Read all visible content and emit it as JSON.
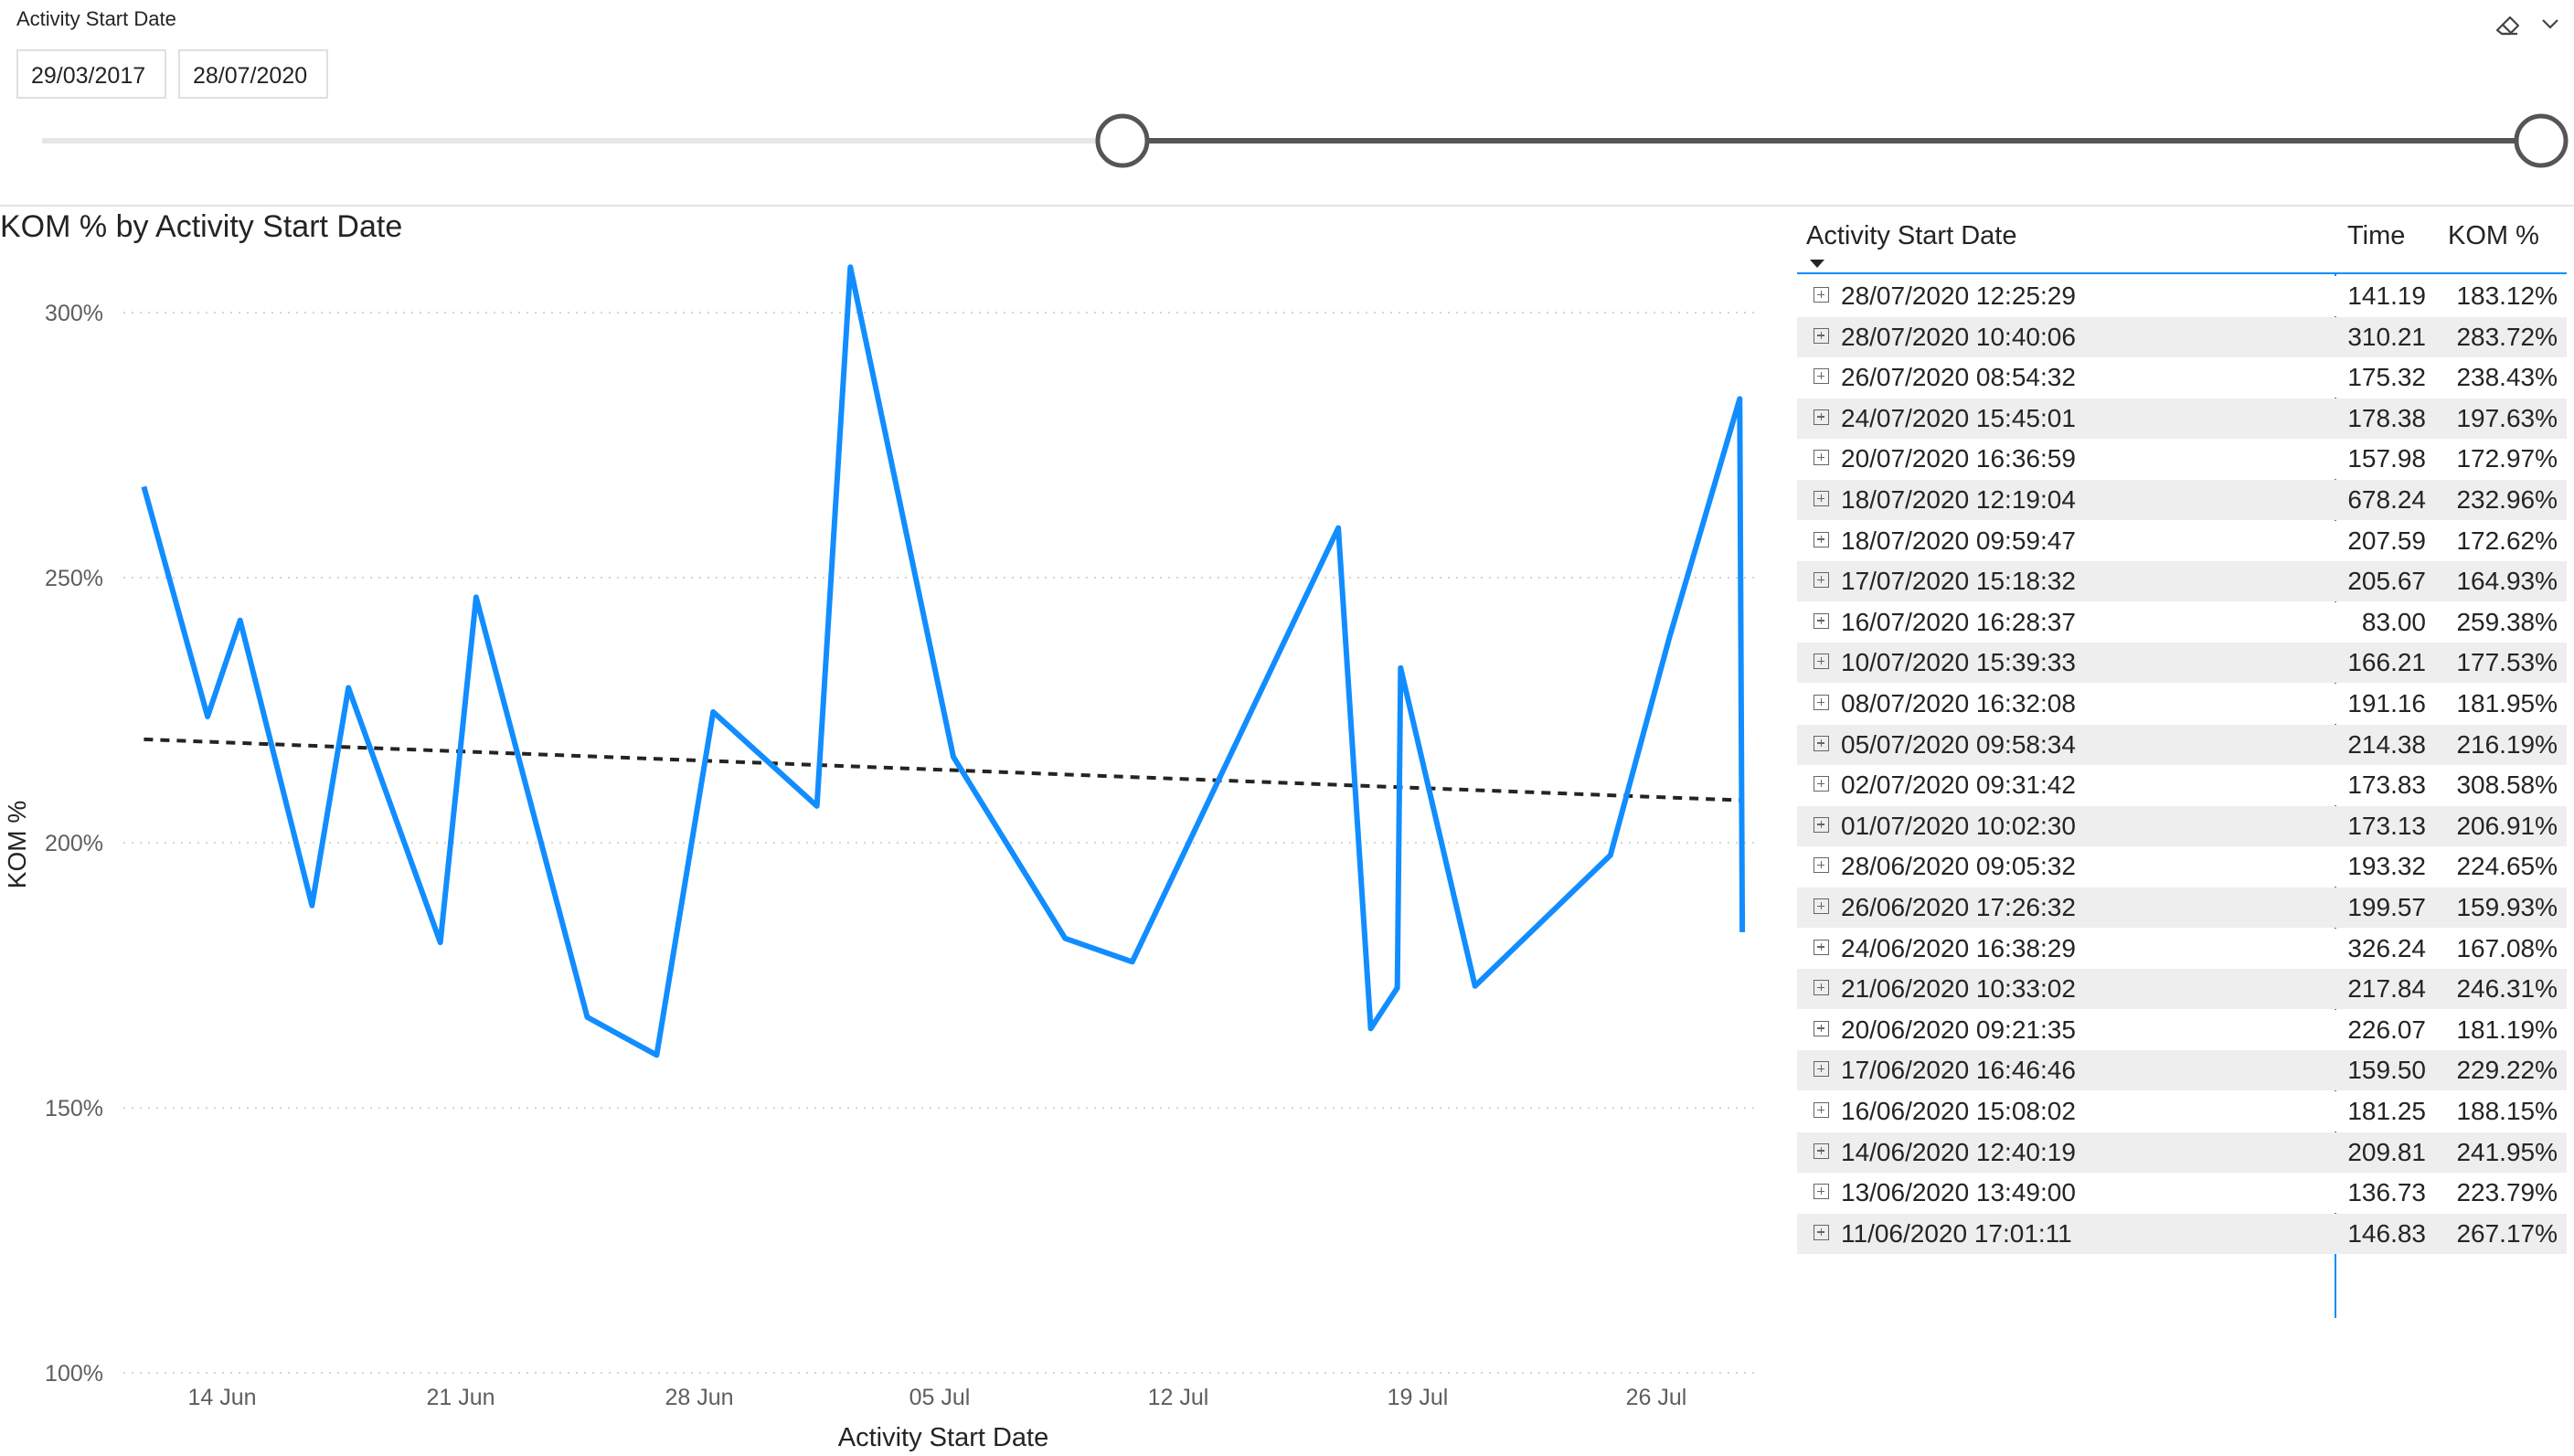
{
  "slicer": {
    "title": "Activity Start Date",
    "start": "29/03/2017",
    "end": "28/07/2020",
    "range_start_fraction": 0.42,
    "range_end_fraction": 1.0
  },
  "icons": {
    "eraser": "eraser-icon",
    "more": "chevron-down-icon",
    "expand": "plus-square-icon",
    "sort": "sort-down-icon"
  },
  "colors": {
    "line": "#118DFF",
    "trend": "#252423",
    "grid": "#c8c6c4",
    "stripe": "#eeeeee",
    "divider": "#118DFF"
  },
  "chart_data": {
    "type": "line",
    "title": "KOM % by Activity Start Date",
    "xlabel": "Activity Start Date",
    "ylabel": "KOM %",
    "ylim": [
      100,
      310
    ],
    "yticks": [
      "300%",
      "250%",
      "200%",
      "150%",
      "100%"
    ],
    "xticks": [
      "14 Jun",
      "21 Jun",
      "28 Jun",
      "05 Jul",
      "12 Jul",
      "19 Jul",
      "26 Jul"
    ],
    "gridlines": "dotted horizontal",
    "series": [
      {
        "x": [
          "2020-06-11 17:01:11",
          "2020-06-13 13:49:00",
          "2020-06-14 12:40:19",
          "2020-06-16 15:08:02",
          "2020-06-17 16:46:46",
          "2020-06-20 09:21:35",
          "2020-06-21 10:33:02",
          "2020-06-24 16:38:29",
          "2020-06-26 17:26:32",
          "2020-06-28 09:05:32",
          "2020-07-01 10:02:30",
          "2020-07-02 09:31:42",
          "2020-07-05 09:58:34",
          "2020-07-08 16:32:08",
          "2020-07-10 15:39:33",
          "2020-07-16 16:28:37",
          "2020-07-17 15:18:32",
          "2020-07-18 09:59:47",
          "2020-07-18 12:19:04",
          "2020-07-20 16:36:59",
          "2020-07-24 15:45:01",
          "2020-07-26 08:54:32",
          "2020-07-28 10:40:06",
          "2020-07-28 12:25:29"
        ],
        "values": [
          267.17,
          223.79,
          241.95,
          188.15,
          229.22,
          181.19,
          246.31,
          167.08,
          159.93,
          224.65,
          206.91,
          308.58,
          216.19,
          181.95,
          177.53,
          259.38,
          164.93,
          172.62,
          232.96,
          172.97,
          197.63,
          238.43,
          283.72,
          183.12
        ]
      }
    ],
    "trend_line": {
      "start": 219.5,
      "end": 208.0
    }
  },
  "table": {
    "columns": [
      "Activity Start Date",
      "Time",
      "KOM %"
    ],
    "rows": [
      [
        "28/07/2020 12:25:29",
        "141.19",
        "183.12%"
      ],
      [
        "28/07/2020 10:40:06",
        "310.21",
        "283.72%"
      ],
      [
        "26/07/2020 08:54:32",
        "175.32",
        "238.43%"
      ],
      [
        "24/07/2020 15:45:01",
        "178.38",
        "197.63%"
      ],
      [
        "20/07/2020 16:36:59",
        "157.98",
        "172.97%"
      ],
      [
        "18/07/2020 12:19:04",
        "678.24",
        "232.96%"
      ],
      [
        "18/07/2020 09:59:47",
        "207.59",
        "172.62%"
      ],
      [
        "17/07/2020 15:18:32",
        "205.67",
        "164.93%"
      ],
      [
        "16/07/2020 16:28:37",
        "83.00",
        "259.38%"
      ],
      [
        "10/07/2020 15:39:33",
        "166.21",
        "177.53%"
      ],
      [
        "08/07/2020 16:32:08",
        "191.16",
        "181.95%"
      ],
      [
        "05/07/2020 09:58:34",
        "214.38",
        "216.19%"
      ],
      [
        "02/07/2020 09:31:42",
        "173.83",
        "308.58%"
      ],
      [
        "01/07/2020 10:02:30",
        "173.13",
        "206.91%"
      ],
      [
        "28/06/2020 09:05:32",
        "193.32",
        "224.65%"
      ],
      [
        "26/06/2020 17:26:32",
        "199.57",
        "159.93%"
      ],
      [
        "24/06/2020 16:38:29",
        "326.24",
        "167.08%"
      ],
      [
        "21/06/2020 10:33:02",
        "217.84",
        "246.31%"
      ],
      [
        "20/06/2020 09:21:35",
        "226.07",
        "181.19%"
      ],
      [
        "17/06/2020 16:46:46",
        "159.50",
        "229.22%"
      ],
      [
        "16/06/2020 15:08:02",
        "181.25",
        "188.15%"
      ],
      [
        "14/06/2020 12:40:19",
        "209.81",
        "241.95%"
      ],
      [
        "13/06/2020 13:49:00",
        "136.73",
        "223.79%"
      ],
      [
        "11/06/2020 17:01:11",
        "146.83",
        "267.17%"
      ]
    ]
  }
}
